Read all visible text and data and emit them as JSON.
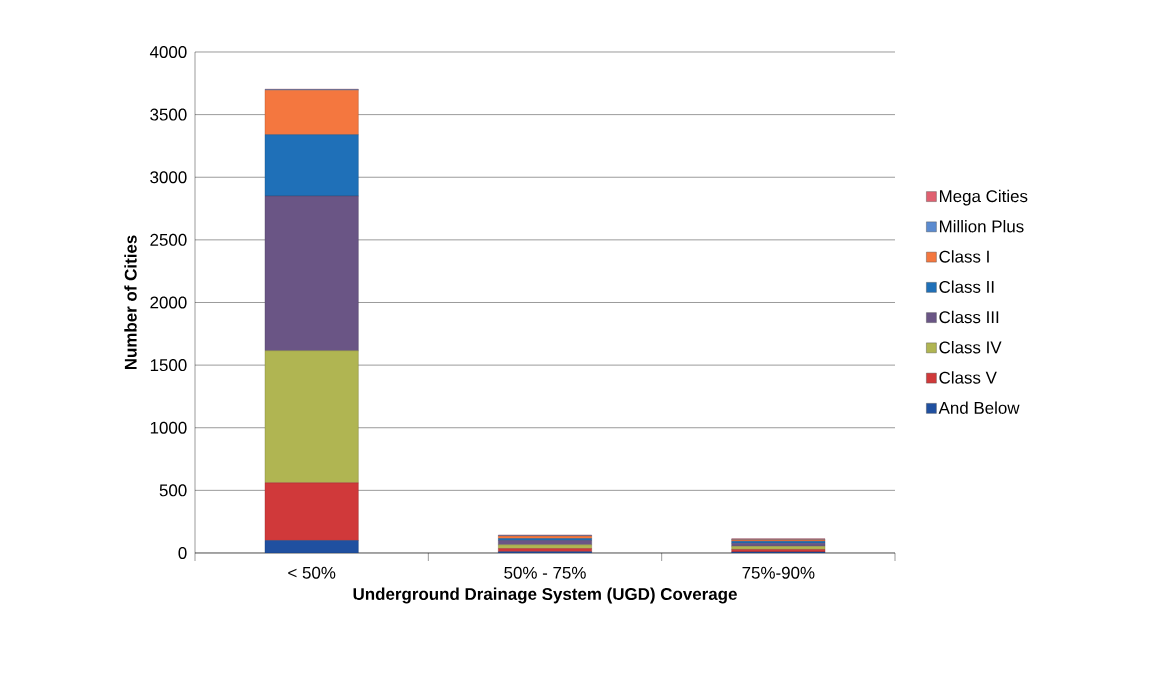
{
  "chart_data": {
    "type": "bar",
    "stacked": true,
    "xlabel": "Underground Drainage System (UGD) Coverage",
    "ylabel": "Number of Cities",
    "categories": [
      "< 50%",
      "50% - 75%",
      "75%-90%"
    ],
    "series": [
      {
        "name": "And Below",
        "color": "#2050a0",
        "values": [
          100,
          10,
          8
        ]
      },
      {
        "name": "Class V",
        "color": "#d0393a",
        "values": [
          460,
          25,
          20
        ]
      },
      {
        "name": "Class IV",
        "color": "#b0b552",
        "values": [
          1055,
          30,
          25
        ]
      },
      {
        "name": "Class III",
        "color": "#6a5585",
        "values": [
          1235,
          35,
          25
        ]
      },
      {
        "name": "Class II",
        "color": "#1f70b8",
        "values": [
          490,
          15,
          15
        ]
      },
      {
        "name": "Class I",
        "color": "#f4773f",
        "values": [
          355,
          20,
          12
        ]
      },
      {
        "name": "Million Plus",
        "color": "#5b8bd0",
        "values": [
          5,
          5,
          5
        ]
      },
      {
        "name": "Mega Cities",
        "color": "#e06070",
        "values": [
          3,
          3,
          3
        ]
      }
    ],
    "ylim": [
      0,
      4000
    ],
    "yticks": [
      0,
      500,
      1000,
      1500,
      2000,
      2500,
      3000,
      3500,
      4000
    ],
    "grid": "y",
    "legend": "right"
  }
}
